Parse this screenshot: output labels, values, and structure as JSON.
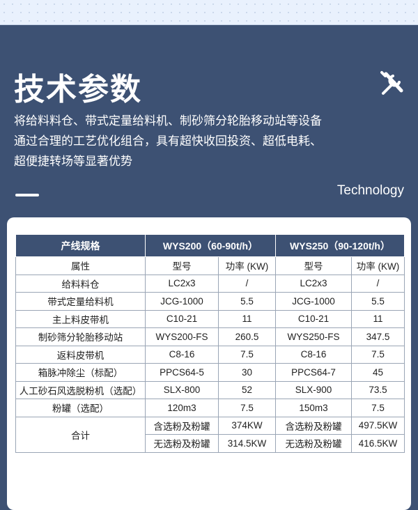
{
  "title": "技术参数",
  "description": [
    "将给料料仓、带式定量给料机、制砂筛分轮胎移动站等设备",
    "通过合理的工艺优化组合，具有超快收回投资、超低电耗、",
    "超便捷转场等显著优势"
  ],
  "subtitle": "Technology",
  "icon": "wrench-screwdriver-icon",
  "colors": {
    "primary": "#3d5173",
    "top_band": "#e9f1fd"
  },
  "table": {
    "header": [
      "产线规格",
      "WYS200（60-90t/h）",
      "WYS250（90-120t/h）"
    ],
    "subheader": [
      "属性",
      "型号",
      "功率 (KW)",
      "型号",
      "功率 (KW)"
    ],
    "rows": [
      [
        "给料料仓",
        "LC2x3",
        "/",
        "LC2x3",
        "/"
      ],
      [
        "带式定量给料机",
        "JCG-1000",
        "5.5",
        "JCG-1000",
        "5.5"
      ],
      [
        "主上料皮带机",
        "C10-21",
        "11",
        "C10-21",
        "11"
      ],
      [
        "制砂筛分轮胎移动站",
        "WYS200-FS",
        "260.5",
        "WYS250-FS",
        "347.5"
      ],
      [
        "返料皮带机",
        "C8-16",
        "7.5",
        "C8-16",
        "7.5"
      ],
      [
        "箱脉冲除尘（标配）",
        "PPCS64-5",
        "30",
        "PPCS64-7",
        "45"
      ],
      [
        "人工砂石风选脱粉机（选配）",
        "SLX-800",
        "52",
        "SLX-900",
        "73.5"
      ],
      [
        "粉罐（选配）",
        "120m3",
        "7.5",
        "150m3",
        "7.5"
      ]
    ],
    "total": {
      "label": "合计",
      "rows": [
        [
          "含选粉及粉罐",
          "374KW",
          "含选粉及粉罐",
          "497.5KW"
        ],
        [
          "无选粉及粉罐",
          "314.5KW",
          "无选粉及粉罐",
          "416.5KW"
        ]
      ]
    }
  }
}
